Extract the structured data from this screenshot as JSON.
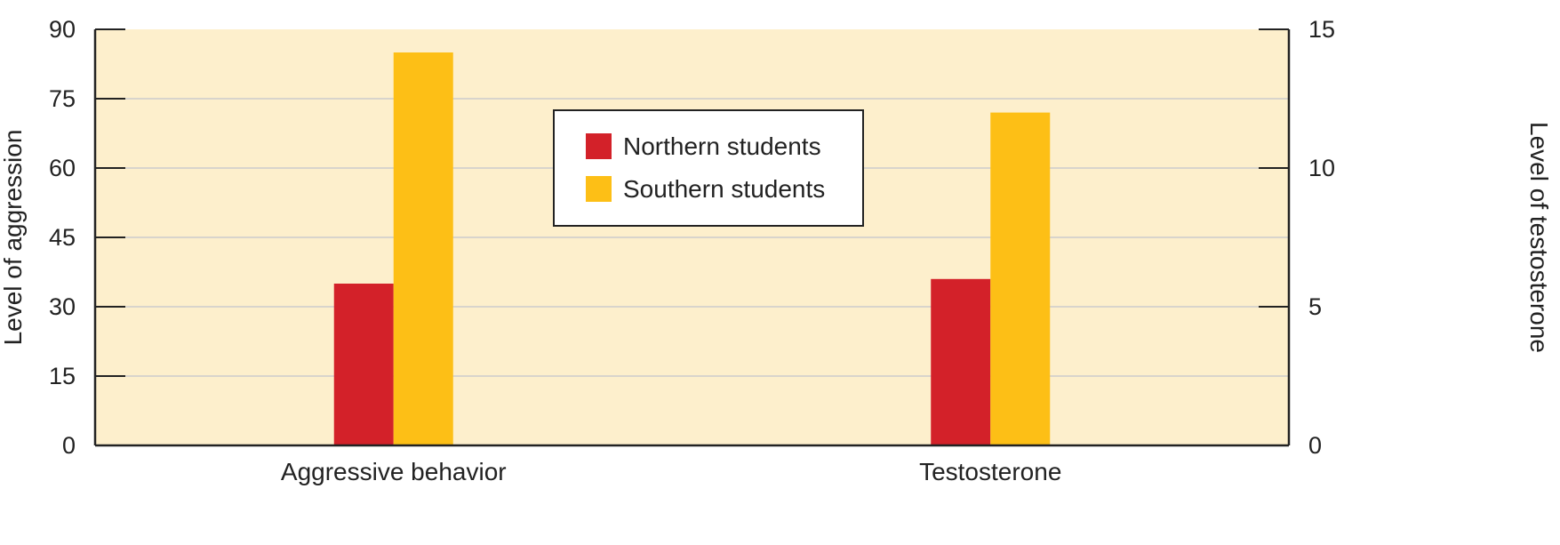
{
  "colors": {
    "plot_background": "#fdefcc",
    "gridline": "#cccccc",
    "axis": "#222222",
    "northern": "#d32129",
    "southern": "#fdbf16"
  },
  "chart_data": {
    "type": "bar",
    "categories": [
      "Aggressive behavior",
      "Testosterone"
    ],
    "series": [
      {
        "name": "Northern students",
        "values": [
          35,
          6
        ],
        "axes": [
          "left",
          "right"
        ]
      },
      {
        "name": "Southern students",
        "values": [
          85,
          12
        ],
        "axes": [
          "left",
          "right"
        ]
      }
    ],
    "ylabel": "Level of aggression",
    "ylabel_right": "Level of testosterone",
    "ylim": [
      0,
      90
    ],
    "yticks": [
      0,
      15,
      30,
      45,
      60,
      75,
      90
    ],
    "ylim_right": [
      0,
      15
    ],
    "yticks_right": [
      0,
      5,
      10,
      15
    ],
    "grid": true,
    "legend_position": "top-center"
  }
}
